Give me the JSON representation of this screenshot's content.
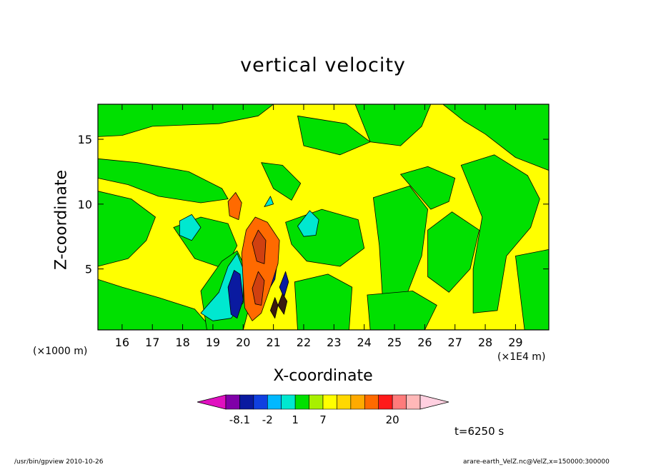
{
  "chart_data": {
    "type": "heatmap",
    "title": "vertical velocity",
    "xlabel": "X-coordinate",
    "ylabel": "Z-coordinate",
    "x_unit_left": "(×1000 m)",
    "x_unit_right": "(×1E4 m)",
    "x_ticks": [
      "16",
      "17",
      "18",
      "19",
      "20",
      "21",
      "22",
      "23",
      "24",
      "25",
      "26",
      "27",
      "28",
      "29"
    ],
    "x_tick_values": [
      16,
      17,
      18,
      19,
      20,
      21,
      22,
      23,
      24,
      25,
      26,
      27,
      28,
      29
    ],
    "xlim": [
      15.2,
      30.1
    ],
    "y_ticks": [
      "5",
      "10",
      "15"
    ],
    "y_tick_values": [
      5,
      10,
      15
    ],
    "ylim": [
      0.3,
      17.7
    ],
    "colorbar": {
      "labels": [
        "-8.1",
        "-2",
        "1",
        "7",
        "20"
      ],
      "colors": [
        "#e010c0",
        "#8000a8",
        "#0a1aa0",
        "#1040e0",
        "#00b8ff",
        "#00e8d0",
        "#00e000",
        "#a8f000",
        "#ffff00",
        "#ffd800",
        "#ffaa00",
        "#ff6a00",
        "#ff1a1a",
        "#ff7b7b",
        "#ffb8b8",
        "#ffd0e0"
      ]
    },
    "field": {
      "background": "#ffff00",
      "regions": [
        {
          "kind": "green",
          "color": "#00e000",
          "polygons": [
            [
              [
                15.2,
                17.7
              ],
              [
                21.0,
                17.7
              ],
              [
                20.5,
                16.8
              ],
              [
                19.2,
                16.2
              ],
              [
                17.0,
                16.0
              ],
              [
                16.0,
                15.3
              ],
              [
                15.2,
                15.2
              ]
            ],
            [
              [
                15.2,
                13.5
              ],
              [
                16.5,
                13.2
              ],
              [
                18.2,
                12.5
              ],
              [
                19.3,
                11.2
              ],
              [
                19.5,
                10.4
              ],
              [
                18.6,
                10.1
              ],
              [
                17.2,
                10.6
              ],
              [
                16.2,
                11.5
              ],
              [
                15.2,
                12.0
              ]
            ],
            [
              [
                15.2,
                11.0
              ],
              [
                16.3,
                10.4
              ],
              [
                17.1,
                9.0
              ],
              [
                16.8,
                7.2
              ],
              [
                16.2,
                5.8
              ],
              [
                15.2,
                5.2
              ]
            ],
            [
              [
                15.2,
                4.2
              ],
              [
                16.0,
                3.6
              ],
              [
                17.2,
                2.8
              ],
              [
                18.4,
                1.9
              ],
              [
                19.0,
                0.3
              ],
              [
                15.2,
                0.3
              ]
            ],
            [
              [
                17.7,
                8.2
              ],
              [
                18.6,
                9.0
              ],
              [
                19.5,
                8.5
              ],
              [
                19.8,
                6.8
              ],
              [
                19.4,
                5.0
              ],
              [
                18.4,
                5.8
              ]
            ],
            [
              [
                18.6,
                3.3
              ],
              [
                19.3,
                5.6
              ],
              [
                19.8,
                6.4
              ],
              [
                20.1,
                5.0
              ],
              [
                20.3,
                3.0
              ],
              [
                20.0,
                0.3
              ],
              [
                18.8,
                0.3
              ]
            ],
            [
              [
                20.6,
                13.2
              ],
              [
                21.3,
                13.0
              ],
              [
                21.9,
                11.6
              ],
              [
                21.6,
                10.3
              ],
              [
                21.0,
                11.2
              ]
            ],
            [
              [
                21.8,
                16.8
              ],
              [
                23.4,
                16.2
              ],
              [
                24.2,
                14.8
              ],
              [
                23.2,
                13.8
              ],
              [
                22.0,
                14.5
              ]
            ],
            [
              [
                21.4,
                8.6
              ],
              [
                22.6,
                9.6
              ],
              [
                23.8,
                8.8
              ],
              [
                24.0,
                6.6
              ],
              [
                23.2,
                5.2
              ],
              [
                22.1,
                5.6
              ],
              [
                21.6,
                6.9
              ]
            ],
            [
              [
                21.7,
                4.0
              ],
              [
                22.8,
                4.6
              ],
              [
                23.6,
                3.6
              ],
              [
                23.5,
                0.3
              ],
              [
                21.8,
                0.3
              ]
            ],
            [
              [
                23.7,
                17.7
              ],
              [
                26.2,
                17.7
              ],
              [
                25.9,
                16.0
              ],
              [
                25.2,
                14.5
              ],
              [
                24.2,
                14.8
              ]
            ],
            [
              [
                24.3,
                10.5
              ],
              [
                25.5,
                11.4
              ],
              [
                26.1,
                9.6
              ],
              [
                25.9,
                6.0
              ],
              [
                25.4,
                3.0
              ],
              [
                24.6,
                3.0
              ],
              [
                24.5,
                6.8
              ]
            ],
            [
              [
                25.2,
                12.3
              ],
              [
                26.1,
                12.9
              ],
              [
                27.0,
                12.0
              ],
              [
                26.8,
                10.2
              ],
              [
                26.2,
                9.6
              ]
            ],
            [
              [
                26.1,
                8.0
              ],
              [
                26.9,
                9.4
              ],
              [
                27.8,
                8.0
              ],
              [
                27.5,
                5.0
              ],
              [
                26.8,
                3.2
              ],
              [
                26.1,
                4.4
              ]
            ],
            [
              [
                26.6,
                17.7
              ],
              [
                30.1,
                17.7
              ],
              [
                30.1,
                12.6
              ],
              [
                29.0,
                13.6
              ],
              [
                28.0,
                15.4
              ],
              [
                27.3,
                16.4
              ]
            ],
            [
              [
                27.2,
                13.0
              ],
              [
                28.3,
                13.8
              ],
              [
                29.4,
                12.2
              ],
              [
                29.8,
                10.4
              ],
              [
                29.5,
                8.2
              ],
              [
                28.7,
                6.0
              ],
              [
                28.4,
                1.8
              ],
              [
                27.6,
                1.6
              ],
              [
                27.6,
                5.0
              ],
              [
                27.9,
                9.0
              ]
            ],
            [
              [
                29.0,
                6.0
              ],
              [
                30.1,
                6.5
              ],
              [
                30.1,
                0.3
              ],
              [
                29.3,
                0.3
              ]
            ],
            [
              [
                24.1,
                3.0
              ],
              [
                25.6,
                3.3
              ],
              [
                26.4,
                2.2
              ],
              [
                26.0,
                0.3
              ],
              [
                24.2,
                0.3
              ]
            ]
          ]
        },
        {
          "kind": "cyan",
          "color": "#00e8d0",
          "polygons": [
            [
              [
                18.6,
                1.6
              ],
              [
                19.2,
                3.2
              ],
              [
                19.5,
                5.2
              ],
              [
                19.8,
                6.2
              ],
              [
                20.0,
                5.0
              ],
              [
                20.0,
                2.4
              ],
              [
                19.6,
                1.2
              ],
              [
                19.0,
                1.0
              ]
            ],
            [
              [
                17.9,
                8.7
              ],
              [
                18.3,
                9.2
              ],
              [
                18.6,
                8.2
              ],
              [
                18.3,
                7.2
              ],
              [
                17.9,
                7.6
              ]
            ],
            [
              [
                21.8,
                8.3
              ],
              [
                22.2,
                9.5
              ],
              [
                22.5,
                8.8
              ],
              [
                22.4,
                7.6
              ],
              [
                22.0,
                7.5
              ]
            ],
            [
              [
                20.7,
                9.8
              ],
              [
                20.9,
                10.6
              ],
              [
                21.0,
                10.0
              ]
            ]
          ]
        },
        {
          "kind": "blue",
          "color": "#0a1aa0",
          "polygons": [
            [
              [
                19.5,
                3.6
              ],
              [
                19.7,
                4.9
              ],
              [
                19.9,
                4.6
              ],
              [
                20.0,
                2.6
              ],
              [
                19.8,
                1.2
              ],
              [
                19.6,
                1.5
              ]
            ],
            [
              [
                20.8,
                5.4
              ],
              [
                21.0,
                6.4
              ],
              [
                21.15,
                5.8
              ],
              [
                21.05,
                4.2
              ],
              [
                20.9,
                3.6
              ]
            ],
            [
              [
                21.2,
                3.6
              ],
              [
                21.4,
                4.8
              ],
              [
                21.5,
                4.0
              ],
              [
                21.35,
                2.8
              ]
            ]
          ]
        },
        {
          "kind": "orange",
          "color": "#ff6a00",
          "polygons": [
            [
              [
                20.1,
                8.0
              ],
              [
                20.4,
                9.0
              ],
              [
                20.8,
                8.6
              ],
              [
                21.2,
                7.2
              ],
              [
                21.15,
                5.4
              ],
              [
                20.9,
                3.6
              ],
              [
                20.6,
                1.6
              ],
              [
                20.3,
                1.0
              ],
              [
                20.05,
                2.0
              ],
              [
                20.0,
                4.0
              ],
              [
                19.95,
                6.2
              ]
            ],
            [
              [
                19.5,
                10.2
              ],
              [
                19.75,
                10.9
              ],
              [
                19.95,
                10.1
              ],
              [
                19.85,
                8.8
              ],
              [
                19.55,
                9.1
              ]
            ]
          ]
        },
        {
          "kind": "dark-orange",
          "color": "#d04010",
          "polygons": [
            [
              [
                20.3,
                7.0
              ],
              [
                20.5,
                8.0
              ],
              [
                20.75,
                7.2
              ],
              [
                20.7,
                5.4
              ],
              [
                20.45,
                5.6
              ]
            ],
            [
              [
                20.3,
                3.5
              ],
              [
                20.5,
                4.8
              ],
              [
                20.7,
                4.1
              ],
              [
                20.6,
                2.2
              ],
              [
                20.4,
                2.3
              ]
            ]
          ]
        },
        {
          "kind": "dark-spots",
          "color": "#3a1a10",
          "polygons": [
            [
              [
                21.15,
                2.2
              ],
              [
                21.3,
                3.1
              ],
              [
                21.45,
                2.5
              ],
              [
                21.35,
                1.5
              ]
            ],
            [
              [
                20.9,
                1.8
              ],
              [
                21.05,
                2.8
              ],
              [
                21.15,
                2.2
              ],
              [
                21.05,
                1.2
              ]
            ]
          ]
        }
      ]
    }
  },
  "annotations": {
    "time": "t=6250 s",
    "footer_left": "/usr/bin/gpview   2010-10-26",
    "footer_right": "arare-earth_VelZ.nc@VelZ,x=150000:300000"
  }
}
